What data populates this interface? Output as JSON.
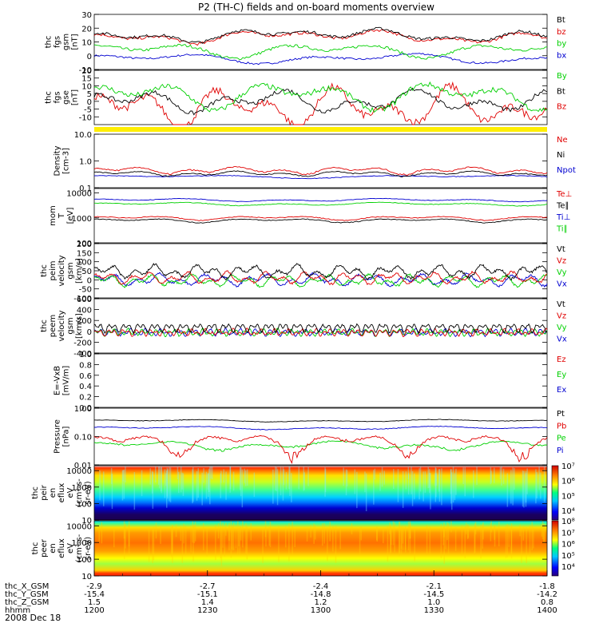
{
  "title": "P2 (TH-C) fields and on-board moments overview",
  "date": "2008 Dec 18",
  "colors": {
    "black": "#000000",
    "red": "#e00000",
    "green": "#00d000",
    "blue": "#0000d0",
    "yellow": "#ffee00"
  },
  "xaxis": {
    "minor_ticks_per_label": 3,
    "time_labels": [
      "1200",
      "1230",
      "1300",
      "1330",
      "1400"
    ],
    "rows": [
      {
        "label": "thc_X_GSM",
        "values": [
          "-2.9",
          "-2.7",
          "-2.4",
          "-2.1",
          "-1.8"
        ]
      },
      {
        "label": "thc_Y_GSM",
        "values": [
          "-15.4",
          "-15.1",
          "-14.8",
          "-14.5",
          "-14.2"
        ]
      },
      {
        "label": "thc_Z_GSM",
        "values": [
          "1.5",
          "1.4",
          "1.2",
          "1.0",
          "0.8"
        ]
      },
      {
        "label": "hhmm",
        "values": [
          "1200",
          "1230",
          "1300",
          "1330",
          "1400"
        ]
      }
    ]
  },
  "chart_data": [
    {
      "id": "fgs_gsm",
      "type": "line",
      "ylabel": [
        "thc",
        "fgs",
        "gsm",
        "[nT]"
      ],
      "ylim": [
        -10,
        30
      ],
      "ticks": [
        "-10",
        "0",
        "10",
        "20",
        "30"
      ],
      "series": [
        {
          "name": "Bt",
          "color": "#000000",
          "approx": "12-18, peaks near 30 at end"
        },
        {
          "name": "bz",
          "color": "#e00000",
          "approx": "12-18, follows Bt"
        },
        {
          "name": "by",
          "color": "#00d000",
          "approx": "0-8"
        },
        {
          "name": "bx",
          "color": "#0000d0",
          "approx": "-5 to 0"
        }
      ]
    },
    {
      "id": "fgs_gse",
      "type": "line",
      "ylabel": [
        "thc",
        "fgs",
        "gse",
        "[nT]"
      ],
      "ylim": [
        -15,
        20
      ],
      "ticks": [
        "-10",
        "-5",
        "0",
        "5",
        "10",
        "15",
        "20"
      ],
      "series": [
        {
          "name": "By",
          "color": "#00d000",
          "approx": "0-10, peaks near 18 at end"
        },
        {
          "name": "Bt",
          "color": "#000000",
          "approx": "-5 to 5"
        },
        {
          "name": "Bz",
          "color": "#e00000",
          "approx": "-12 to 2"
        }
      ]
    },
    {
      "id": "density",
      "type": "line",
      "log": true,
      "ylabel": [
        "Density",
        "[cm-3]"
      ],
      "ylim": [
        0.1,
        10
      ],
      "ticks": [
        "0.1",
        "1.0",
        "10.0"
      ],
      "series": [
        {
          "name": "Ne",
          "color": "#e00000",
          "approx": "0.4-0.5, peak ~0.9 near 1228"
        },
        {
          "name": "Ni",
          "color": "#000000",
          "approx": "0.3-0.4"
        },
        {
          "name": "Npot",
          "color": "#0000d0",
          "approx": "0.2-0.3"
        }
      ]
    },
    {
      "id": "mom_temp",
      "type": "line",
      "log": true,
      "ylabel": [
        "mom",
        "T",
        "[eV]"
      ],
      "ylim": [
        100,
        15000
      ],
      "ticks": [
        "100",
        "1000",
        "10000"
      ],
      "series": [
        {
          "name": "Te⊥",
          "color": "#e00000",
          "approx": "~1000"
        },
        {
          "name": "Te∥",
          "color": "#000000",
          "approx": "~800"
        },
        {
          "name": "Ti⊥",
          "color": "#0000d0",
          "approx": "~5000"
        },
        {
          "name": "Ti∥",
          "color": "#00d000",
          "approx": "~3500"
        }
      ]
    },
    {
      "id": "peim_vel",
      "type": "line",
      "ylabel": [
        "thc",
        "peim",
        "velocity",
        "gsm",
        "[km/s]"
      ],
      "ylim": [
        -100,
        200
      ],
      "ticks": [
        "-100",
        "-50",
        "0",
        "50",
        "100",
        "150",
        "200"
      ],
      "series": [
        {
          "name": "Vt",
          "color": "#000000",
          "approx": "20-80"
        },
        {
          "name": "Vz",
          "color": "#e00000",
          "approx": "-30 to 40"
        },
        {
          "name": "Vy",
          "color": "#00d000",
          "approx": "-40 to 30"
        },
        {
          "name": "Vx",
          "color": "#0000d0",
          "approx": "-40 to 40"
        }
      ]
    },
    {
      "id": "peem_vel",
      "type": "line",
      "ylabel": [
        "thc",
        "peem",
        "velocity",
        "gsm",
        "[km/s]"
      ],
      "ylim": [
        -400,
        600
      ],
      "ticks": [
        "-400",
        "-200",
        "0",
        "200",
        "400",
        "600"
      ],
      "series": [
        {
          "name": "Vt",
          "color": "#000000",
          "approx": "0-150, spikes to 500"
        },
        {
          "name": "Vz",
          "color": "#e00000",
          "approx": "-100 to 50"
        },
        {
          "name": "Vy",
          "color": "#00d000",
          "approx": "-100 to 50"
        },
        {
          "name": "Vx",
          "color": "#0000d0",
          "approx": "-100 to 50"
        }
      ]
    },
    {
      "id": "e_vxb",
      "type": "line",
      "ylabel": [
        "E=-VxB",
        "[mV/m]"
      ],
      "ylim": [
        0.0,
        1.0
      ],
      "ticks": [
        "0.0",
        "0.2",
        "0.4",
        "0.6",
        "0.8",
        "1.0"
      ],
      "series": [
        {
          "name": "Ez",
          "color": "#e00000"
        },
        {
          "name": "Ey",
          "color": "#00d000"
        },
        {
          "name": "Ex",
          "color": "#0000d0"
        }
      ]
    },
    {
      "id": "pressure",
      "type": "line",
      "log": true,
      "ylabel": [
        "Pressure",
        "[nPa]"
      ],
      "ylim": [
        0.01,
        1.0
      ],
      "ticks": [
        "0.01",
        "0.10",
        "1.00"
      ],
      "series": [
        {
          "name": "Pt",
          "color": "#000000",
          "approx": "~0.35"
        },
        {
          "name": "Pb",
          "color": "#e00000",
          "approx": "0.03-0.1"
        },
        {
          "name": "Pe",
          "color": "#00d000",
          "approx": "~0.05"
        },
        {
          "name": "Pi",
          "color": "#0000d0",
          "approx": "~0.2"
        }
      ]
    },
    {
      "id": "peir_spec",
      "type": "heatmap",
      "log": true,
      "ylabel": [
        "thc",
        "peir",
        "en",
        "eflux",
        "eV",
        "(cm²-s-",
        "sr-eV)"
      ],
      "ylim": [
        10,
        20000
      ],
      "ticks": [
        "10",
        "100",
        "1000",
        "10000"
      ],
      "colorbar": [
        "10⁴",
        "10⁵",
        "10⁶",
        "10⁷"
      ]
    },
    {
      "id": "peer_spec",
      "type": "heatmap",
      "log": true,
      "ylabel": [
        "thc",
        "peer",
        "en",
        "eflux",
        "eV",
        "(cm²-s-",
        "sr-eV)"
      ],
      "ylim": [
        10,
        20000
      ],
      "ticks": [
        "10",
        "100",
        "1000",
        "10000"
      ],
      "colorbar": [
        "10⁴",
        "10⁵",
        "10⁶",
        "10⁷",
        "10⁸"
      ]
    }
  ]
}
